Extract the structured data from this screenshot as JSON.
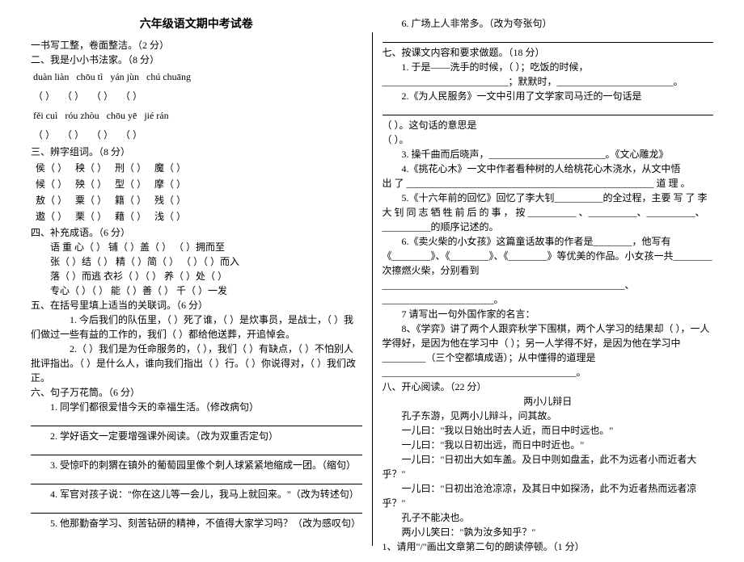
{
  "title": "六年级语文期中考试卷",
  "left": {
    "q1": "一书写工整，卷面整洁。（2 分）",
    "q2": "二、我是小小书法家。（8 分）",
    "pinyin1": [
      "duàn  liàn",
      "chōu  tì",
      "yán    jùn",
      "chú chuāng"
    ],
    "paren1": [
      "（          ）",
      "（          ）",
      "（        ）",
      "（        ）"
    ],
    "pinyin2": [
      "fěi  cuì",
      "róu  zhòu",
      "chōu  yē",
      "jié  rán"
    ],
    "paren2": [
      "（          ）",
      "（          ）",
      "（        ）",
      "（        ）"
    ],
    "q3": "三、辨字组词。（8 分）",
    "r1": [
      "侯（        ）",
      "秧（        ）",
      "刑（        ）",
      "魔（        ）"
    ],
    "r2": [
      "候（        ）",
      "殃（        ）",
      "型（        ）",
      "摩（        ）"
    ],
    "r3": [
      "敖（        ）",
      "粟（        ）",
      "籍（        ）",
      "残（        ）"
    ],
    "r4": [
      "遨（        ）",
      "栗（        ）",
      "藉（        ）",
      "浅（        ）"
    ],
    "q4": "四、补充成语。（6 分）",
    "c1": "语  重  心（    ）    铺（    ）盖（    ）    （    ）拥而至",
    "c2": "张（    ）结（    ）      精（    ）简（    ）      （    ）（    ）而入",
    "c3": "落（    ）而逃        衣衫（    ）（    ）    养（    ）处（    ）",
    "c4": "专心（    ）（    ）    能（    ）善（    ）      千（    ）一发",
    "q5": "五、在括号里填上适当的关联词。（6 分）",
    "q5_1": "1. 今后我们的队伍里，（      ）死了谁，（      ）是炊事员，是战士，（      ）我们做过一些有益的工作的，我们（      ）都给他送葬，开追悼会。",
    "q5_2": "2.（      ）我们是为任命服务的，（      ），我们（      ）有缺点，（      ）不怕别人批评指出。（      ）是什么人，谁向我们指出（      ）行。（      ）你说得对，（      ）我们改正。",
    "q6": "六、句子万花筒。（6 分）",
    "q6_1": "1. 同学们都很爱惜今天的幸福生活。（修改病句）",
    "q6_2": "2. 学好语文一定要增强课外阅读。（改为双重否定句）",
    "q6_3": "3. 受惊吓的刺猬在镇外的葡萄园里像个刺人球紧紧地缩成一团。（缩句）",
    "q6_4": "4. 军官对孩子说：\"你在这儿等一会儿，我马上就回来。\"（改为转述句）",
    "q6_5": "5.  他那勤奋学习、刻苦钻研的精神，不值得大家学习吗？（改为感叹句）"
  },
  "right": {
    "q6_6": "6.  广场上人非常多。（改为夸张句）",
    "q7": "七、按课文内容和要求做题。（18 分）",
    "q7_1": "1. 于是——洗手的时候，（                    ）；吃饭的时候，__________________________；默默时，________________________。",
    "q7_2a": "2.《为人民服务》一文中引用了文学家司马迁的一句话是",
    "q7_2b": "（                                                ）。这句话的意思是",
    "q7_2c": "（                                            ）。",
    "q7_3a": "3. 操千曲而后晓声，________________________。《文心雕龙》",
    "q7_4a": "4.《挑花心木》一文中作者看种树的人给桃花心木浇水，从文中悟",
    "q7_4b": "出 了 ___________________________________________________ 道 理 。",
    "q7_5a": "5.《十六年前的回忆》回忆了李大钊__________的全过程，主要 写 了 李 大 钊 同 志 牺 牲 前 后 的 事 ， 按 __________ 、__________、__________、__________的顺序记述的。",
    "q7_6a": "6.《卖火柴的小女孩》这篇童话故事的作者是________，他写有《________》、《________》、《________》等优美的作品。小女孩一共________次擦燃火柴，分别看到__________________________________________________、_______________________。",
    "q7_7": "7 请写出一句外国作家的名言：",
    "q7_8a": "8、《学弈》讲了两个人跟弈秋学下围棋，两个人学习的结果却（              ），一人学得好，是因为他在学习中（              ）；另一人学得不好，是因为他在学习中_________（三个空都填成语）；从中懂得的道理是________________________________________。",
    "q8": "八、开心阅读。（22 分）",
    "poem_title": "两小儿辩日",
    "p1": "孔子东游，见两小儿辩斗，问其故。",
    "p2": "一儿曰：\"我以日始出时去人近，而日中时远也。\"",
    "p3": "一儿曰：\"我以日初出远，而日中时近也。\"",
    "p4": "一儿曰：\"日初出大如车盖。及日中则如盘盂，此不为远者小而近者大乎？\"",
    "p5": "一儿曰：\"日初出沧沧凉凉，及其日中如探汤，此不为近者热而远者凉乎？\"",
    "p6": "孔子不能决也。",
    "p7": "两小儿笑曰：\"孰为汝多知乎？\"",
    "q8_1": "1、请用\"/\"画出文章第二句的朗读停顿。（1 分）"
  }
}
